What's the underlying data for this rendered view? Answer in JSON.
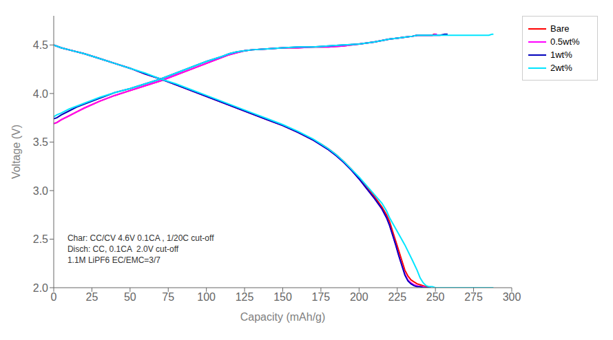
{
  "chart_data": {
    "type": "line",
    "xlabel": "Capacity (mAh/g)",
    "ylabel": "Voltage (V)",
    "xlim": [
      0,
      300
    ],
    "ylim": [
      2.0,
      4.8
    ],
    "xticks": [
      0,
      25,
      50,
      75,
      100,
      125,
      150,
      175,
      200,
      225,
      250,
      275,
      300
    ],
    "yticks": [
      {
        "value": 2.0,
        "label": "2.0"
      },
      {
        "value": 2.5,
        "label": "2.5"
      },
      {
        "value": 3.0,
        "label": "3.0"
      },
      {
        "value": 3.5,
        "label": "3.5"
      },
      {
        "value": 4.0,
        "label": "4.0"
      },
      {
        "value": 4.5,
        "label": "4.5"
      }
    ],
    "grid": false,
    "legend": "upper right",
    "annotation": "Char: CC/CV 4.6V 0.1CA , 1/20C cut-off\nDisch: CC, 0.1CA  2.0V cut-off\n1.1M LiPF6 EC/EMC=3/7",
    "series": [
      {
        "name": "Bare",
        "color": "#ff0000",
        "x": [
          0,
          2,
          5,
          10,
          15,
          20,
          30,
          40,
          50,
          60,
          70,
          80,
          90,
          100,
          110,
          115,
          120,
          125,
          130,
          140,
          150,
          160,
          170,
          180,
          190,
          200,
          210,
          220,
          225,
          230,
          235,
          238,
          240,
          242,
          244,
          246,
          248,
          249,
          250
        ],
        "values": [
          3.69,
          3.7,
          3.73,
          3.77,
          3.81,
          3.85,
          3.92,
          3.98,
          4.03,
          4.08,
          4.13,
          4.19,
          4.25,
          4.31,
          4.37,
          4.4,
          4.42,
          4.44,
          4.45,
          4.46,
          4.47,
          4.47,
          4.48,
          4.48,
          4.49,
          4.51,
          4.53,
          4.56,
          4.57,
          4.58,
          4.59,
          4.6,
          4.6,
          4.6,
          4.6,
          4.6,
          4.6,
          4.61,
          4.61
        ]
      },
      {
        "name": "0.5wt%",
        "color": "#ff00ff",
        "x": [
          0,
          2,
          5,
          10,
          15,
          20,
          30,
          40,
          50,
          60,
          70,
          80,
          90,
          100,
          110,
          115,
          120,
          125,
          130,
          140,
          150,
          160,
          170,
          180,
          190,
          200,
          210,
          220,
          225,
          230,
          235,
          238,
          240,
          242,
          244,
          246,
          248,
          250,
          251
        ],
        "values": [
          3.69,
          3.7,
          3.73,
          3.77,
          3.81,
          3.85,
          3.92,
          3.98,
          4.03,
          4.08,
          4.13,
          4.19,
          4.25,
          4.31,
          4.37,
          4.4,
          4.42,
          4.44,
          4.45,
          4.46,
          4.47,
          4.47,
          4.48,
          4.48,
          4.49,
          4.51,
          4.53,
          4.56,
          4.57,
          4.58,
          4.59,
          4.6,
          4.6,
          4.6,
          4.6,
          4.6,
          4.6,
          4.61,
          4.61
        ]
      },
      {
        "name": "1wt%",
        "color": "#0000bb",
        "x": [
          0,
          2,
          5,
          10,
          15,
          20,
          30,
          40,
          50,
          60,
          70,
          80,
          90,
          100,
          110,
          115,
          120,
          125,
          130,
          140,
          150,
          160,
          170,
          180,
          190,
          200,
          210,
          220,
          225,
          230,
          235,
          238,
          240,
          242,
          244,
          246,
          248,
          250,
          253,
          256,
          258
        ],
        "values": [
          3.74,
          3.75,
          3.78,
          3.82,
          3.86,
          3.89,
          3.95,
          4.01,
          4.05,
          4.1,
          4.15,
          4.21,
          4.27,
          4.33,
          4.38,
          4.41,
          4.43,
          4.44,
          4.45,
          4.46,
          4.47,
          4.48,
          4.48,
          4.49,
          4.5,
          4.51,
          4.53,
          4.56,
          4.57,
          4.58,
          4.59,
          4.6,
          4.6,
          4.6,
          4.6,
          4.6,
          4.6,
          4.6,
          4.6,
          4.61,
          4.61
        ]
      },
      {
        "name": "2wt%",
        "color": "#00e5ff",
        "x": [
          0,
          2,
          5,
          10,
          15,
          20,
          30,
          40,
          50,
          60,
          70,
          80,
          90,
          100,
          110,
          115,
          120,
          125,
          130,
          140,
          150,
          160,
          170,
          180,
          190,
          200,
          210,
          220,
          225,
          230,
          235,
          238,
          240,
          242,
          244,
          246,
          248,
          250,
          255,
          260,
          265,
          270,
          275,
          280,
          283,
          285,
          287,
          288
        ],
        "values": [
          3.76,
          3.78,
          3.8,
          3.84,
          3.87,
          3.9,
          3.96,
          4.01,
          4.05,
          4.1,
          4.15,
          4.21,
          4.27,
          4.33,
          4.38,
          4.41,
          4.43,
          4.44,
          4.45,
          4.46,
          4.47,
          4.48,
          4.48,
          4.49,
          4.5,
          4.51,
          4.53,
          4.56,
          4.57,
          4.58,
          4.59,
          4.6,
          4.6,
          4.6,
          4.6,
          4.6,
          4.6,
          4.6,
          4.6,
          4.6,
          4.6,
          4.6,
          4.6,
          4.6,
          4.6,
          4.6,
          4.61,
          4.61
        ]
      },
      {
        "name": "Bare",
        "color": "#ff0000",
        "x": [
          0,
          5,
          10,
          20,
          30,
          40,
          50,
          60,
          70,
          80,
          90,
          100,
          110,
          120,
          130,
          140,
          150,
          160,
          170,
          175,
          180,
          185,
          190,
          195,
          200,
          205,
          210,
          215,
          218,
          220,
          222,
          224,
          226,
          228,
          230,
          232,
          234,
          236,
          238,
          240,
          242,
          244,
          246
        ],
        "values": [
          4.5,
          4.47,
          4.45,
          4.41,
          4.36,
          4.31,
          4.26,
          4.2,
          4.15,
          4.09,
          4.03,
          3.97,
          3.91,
          3.85,
          3.79,
          3.73,
          3.67,
          3.6,
          3.52,
          3.48,
          3.43,
          3.37,
          3.3,
          3.22,
          3.13,
          3.04,
          2.94,
          2.83,
          2.75,
          2.68,
          2.58,
          2.48,
          2.38,
          2.28,
          2.18,
          2.12,
          2.08,
          2.06,
          2.04,
          2.03,
          2.02,
          2.01,
          2.0
        ]
      },
      {
        "name": "0.5wt%",
        "color": "#ff00ff",
        "x": [
          0,
          5,
          10,
          20,
          30,
          40,
          50,
          60,
          70,
          80,
          90,
          100,
          110,
          120,
          130,
          140,
          150,
          160,
          170,
          175,
          180,
          185,
          190,
          195,
          200,
          205,
          210,
          215,
          218,
          220,
          222,
          224,
          226,
          228,
          230,
          232,
          234,
          236,
          238,
          240,
          242,
          244,
          246
        ],
        "values": [
          4.5,
          4.47,
          4.45,
          4.41,
          4.36,
          4.31,
          4.26,
          4.2,
          4.15,
          4.09,
          4.03,
          3.97,
          3.91,
          3.85,
          3.79,
          3.73,
          3.67,
          3.6,
          3.52,
          3.47,
          3.42,
          3.36,
          3.29,
          3.21,
          3.12,
          3.02,
          2.92,
          2.81,
          2.72,
          2.64,
          2.54,
          2.44,
          2.33,
          2.23,
          2.14,
          2.08,
          2.05,
          2.03,
          2.02,
          2.01,
          2.01,
          2.0,
          2.0
        ]
      },
      {
        "name": "1wt%",
        "color": "#0000bb",
        "x": [
          0,
          5,
          10,
          20,
          30,
          40,
          50,
          60,
          70,
          80,
          90,
          100,
          110,
          120,
          130,
          140,
          150,
          160,
          170,
          175,
          180,
          185,
          190,
          195,
          200,
          205,
          210,
          215,
          218,
          220,
          222,
          224,
          226,
          228,
          230,
          232,
          234,
          236,
          238,
          240,
          242,
          244,
          247
        ],
        "values": [
          4.5,
          4.47,
          4.45,
          4.41,
          4.36,
          4.31,
          4.26,
          4.2,
          4.15,
          4.09,
          4.03,
          3.97,
          3.91,
          3.85,
          3.79,
          3.73,
          3.67,
          3.6,
          3.52,
          3.47,
          3.42,
          3.36,
          3.29,
          3.21,
          3.12,
          3.02,
          2.92,
          2.81,
          2.72,
          2.64,
          2.54,
          2.44,
          2.33,
          2.23,
          2.13,
          2.07,
          2.04,
          2.02,
          2.01,
          2.01,
          2.0,
          2.0,
          2.0
        ]
      },
      {
        "name": "2wt%",
        "color": "#00e5ff",
        "x": [
          0,
          5,
          10,
          20,
          30,
          40,
          50,
          60,
          70,
          80,
          90,
          100,
          110,
          120,
          130,
          140,
          150,
          160,
          170,
          175,
          180,
          185,
          190,
          195,
          200,
          205,
          210,
          215,
          218,
          220,
          225,
          230,
          235,
          238,
          240,
          242,
          244,
          246,
          248,
          250,
          255,
          260,
          265,
          270,
          275,
          280,
          283,
          285,
          287,
          288
        ],
        "values": [
          4.5,
          4.47,
          4.45,
          4.41,
          4.36,
          4.31,
          4.26,
          4.21,
          4.15,
          4.1,
          4.04,
          3.98,
          3.92,
          3.86,
          3.8,
          3.74,
          3.68,
          3.61,
          3.53,
          3.48,
          3.43,
          3.37,
          3.3,
          3.22,
          3.14,
          3.05,
          2.96,
          2.87,
          2.79,
          2.72,
          2.58,
          2.44,
          2.28,
          2.18,
          2.1,
          2.05,
          2.02,
          2.01,
          2.01,
          2.0,
          2.0,
          2.0,
          2.0,
          2.0,
          2.0,
          2.0,
          2.0,
          2.0,
          2.0,
          2.0
        ]
      }
    ]
  }
}
